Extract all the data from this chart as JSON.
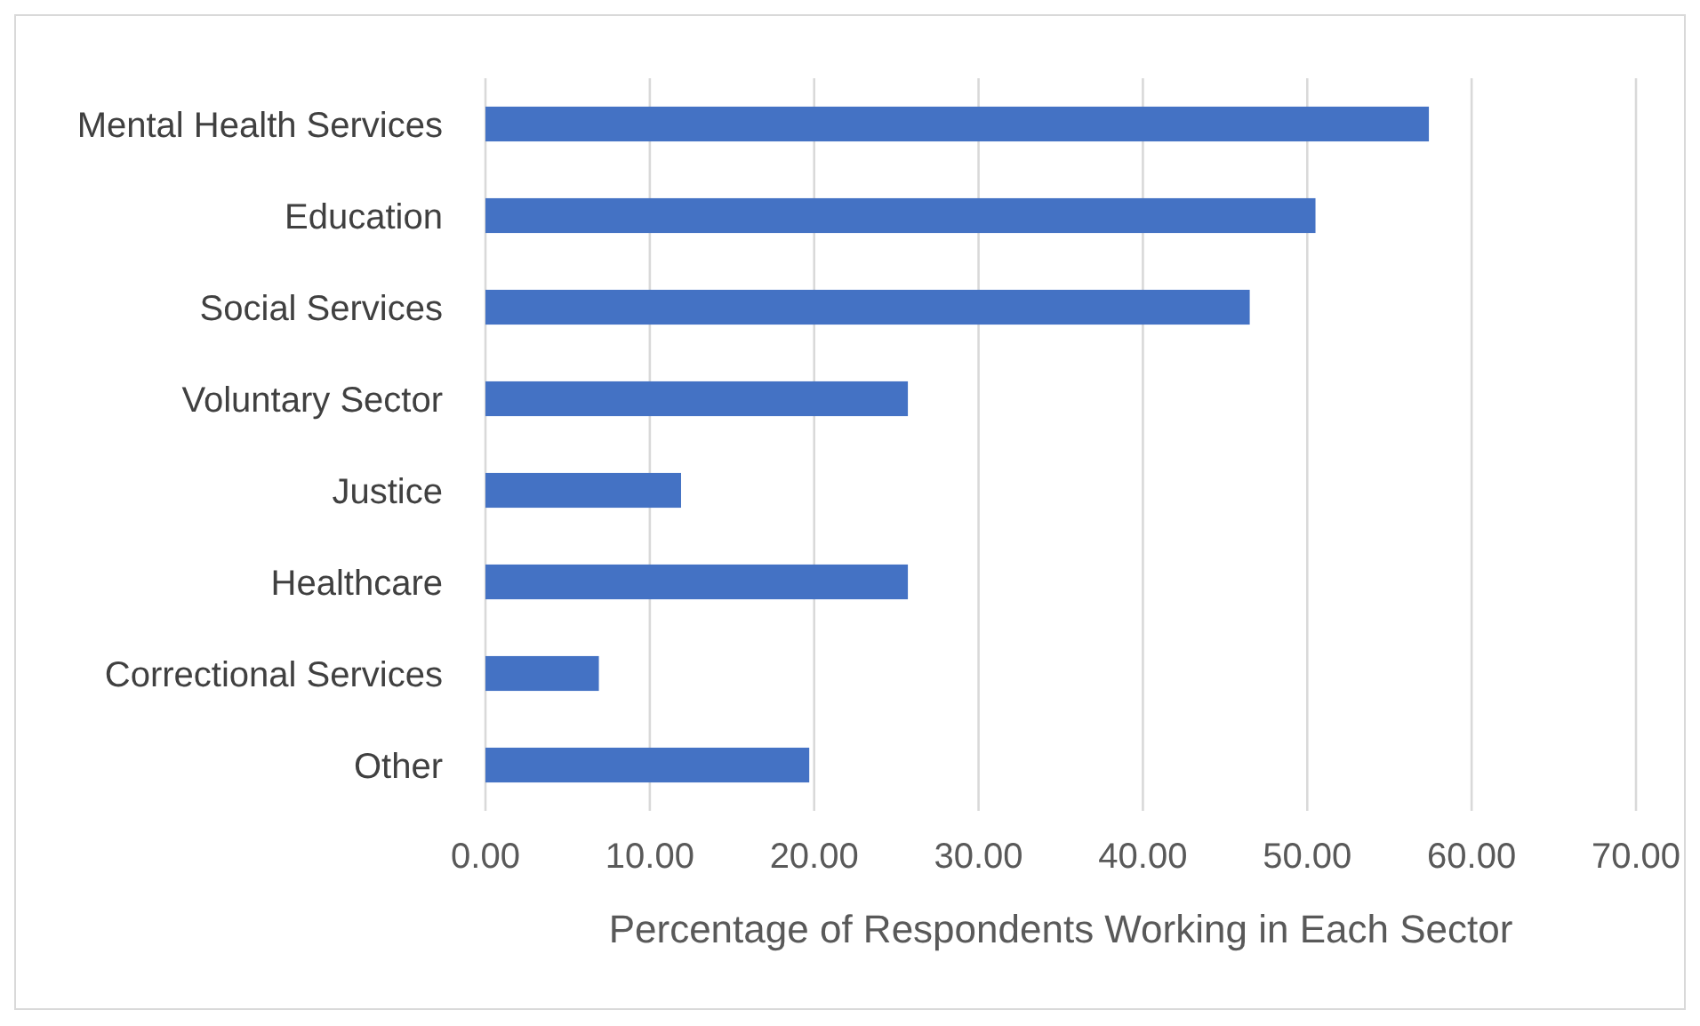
{
  "chart_data": {
    "type": "bar",
    "orientation": "horizontal",
    "xlabel": "Percentage of Respondents Working in Each Sector",
    "categories": [
      "Mental Health Services",
      "Education",
      "Social Services",
      "Voluntary Sector",
      "Justice",
      "Healthcare",
      "Correctional Services",
      "Other"
    ],
    "values": [
      57.4,
      50.5,
      46.5,
      25.7,
      11.9,
      25.7,
      6.9,
      19.7
    ],
    "color": "#4472c4",
    "xlim": [
      0,
      70
    ],
    "xticks": [
      {
        "value": 0,
        "label": "0.00"
      },
      {
        "value": 10,
        "label": "10.00"
      },
      {
        "value": 20,
        "label": "20.00"
      },
      {
        "value": 30,
        "label": "30.00"
      },
      {
        "value": 40,
        "label": "40.00"
      },
      {
        "value": 50,
        "label": "50.00"
      },
      {
        "value": 60,
        "label": "60.00"
      },
      {
        "value": 70,
        "label": "70.00"
      }
    ],
    "grid": "x"
  }
}
